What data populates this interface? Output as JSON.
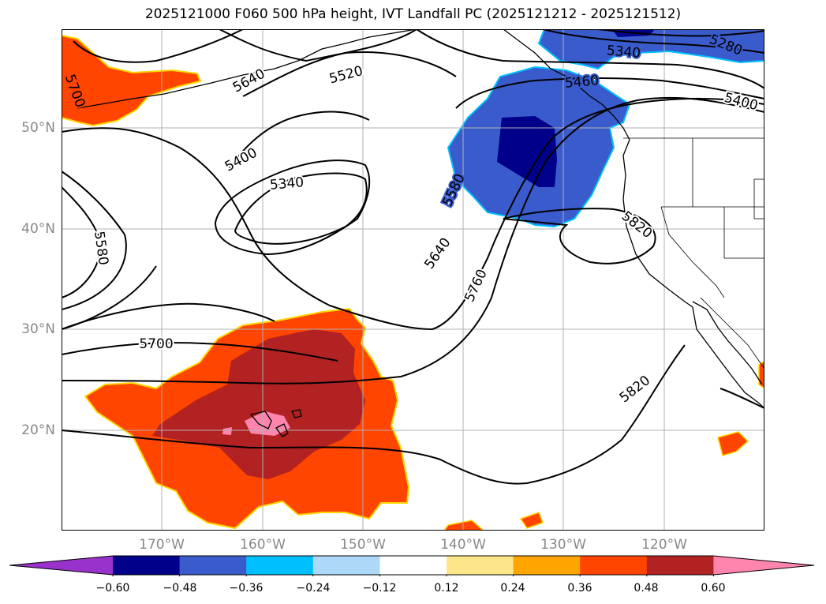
{
  "title": "2025121000 F060 500 hPa height, IVT Landfall PC (2025121212 - 2025121512)",
  "lat_labels": [
    "50°N",
    "40°N",
    "30°N",
    "20°N"
  ],
  "lon_labels": [
    "170°W",
    "160°W",
    "150°W",
    "140°W",
    "130°W",
    "120°W"
  ],
  "contour_labels": [
    "5700",
    "5640",
    "5520",
    "5400",
    "5340",
    "5580",
    "5700",
    "5640",
    "5760",
    "5580",
    "5340",
    "5280",
    "5460",
    "5400",
    "5820",
    "5820"
  ],
  "colorbar": {
    "ticks": [
      "−0.60",
      "−0.48",
      "−0.36",
      "−0.24",
      "−0.12",
      "0.12",
      "0.24",
      "0.36",
      "0.48",
      "0.60"
    ],
    "colors": [
      "#9932cc",
      "#00008b",
      "#3a5bcc",
      "#00bfff",
      "#add8f8",
      "#ffffff",
      "#fde68a",
      "#ffa500",
      "#ff4500",
      "#b22222",
      "#ff85ae"
    ]
  },
  "layers": {
    "positive_fill": "#ff4500",
    "strong_positive_fill": "#b22222",
    "max_positive_fill": "#ff85ae",
    "negative_fill": "#3a5bcc",
    "strong_negative_fill": "#00008b",
    "edge_light_blue": "#00bfff",
    "edge_yellow": "#ffd700"
  }
}
